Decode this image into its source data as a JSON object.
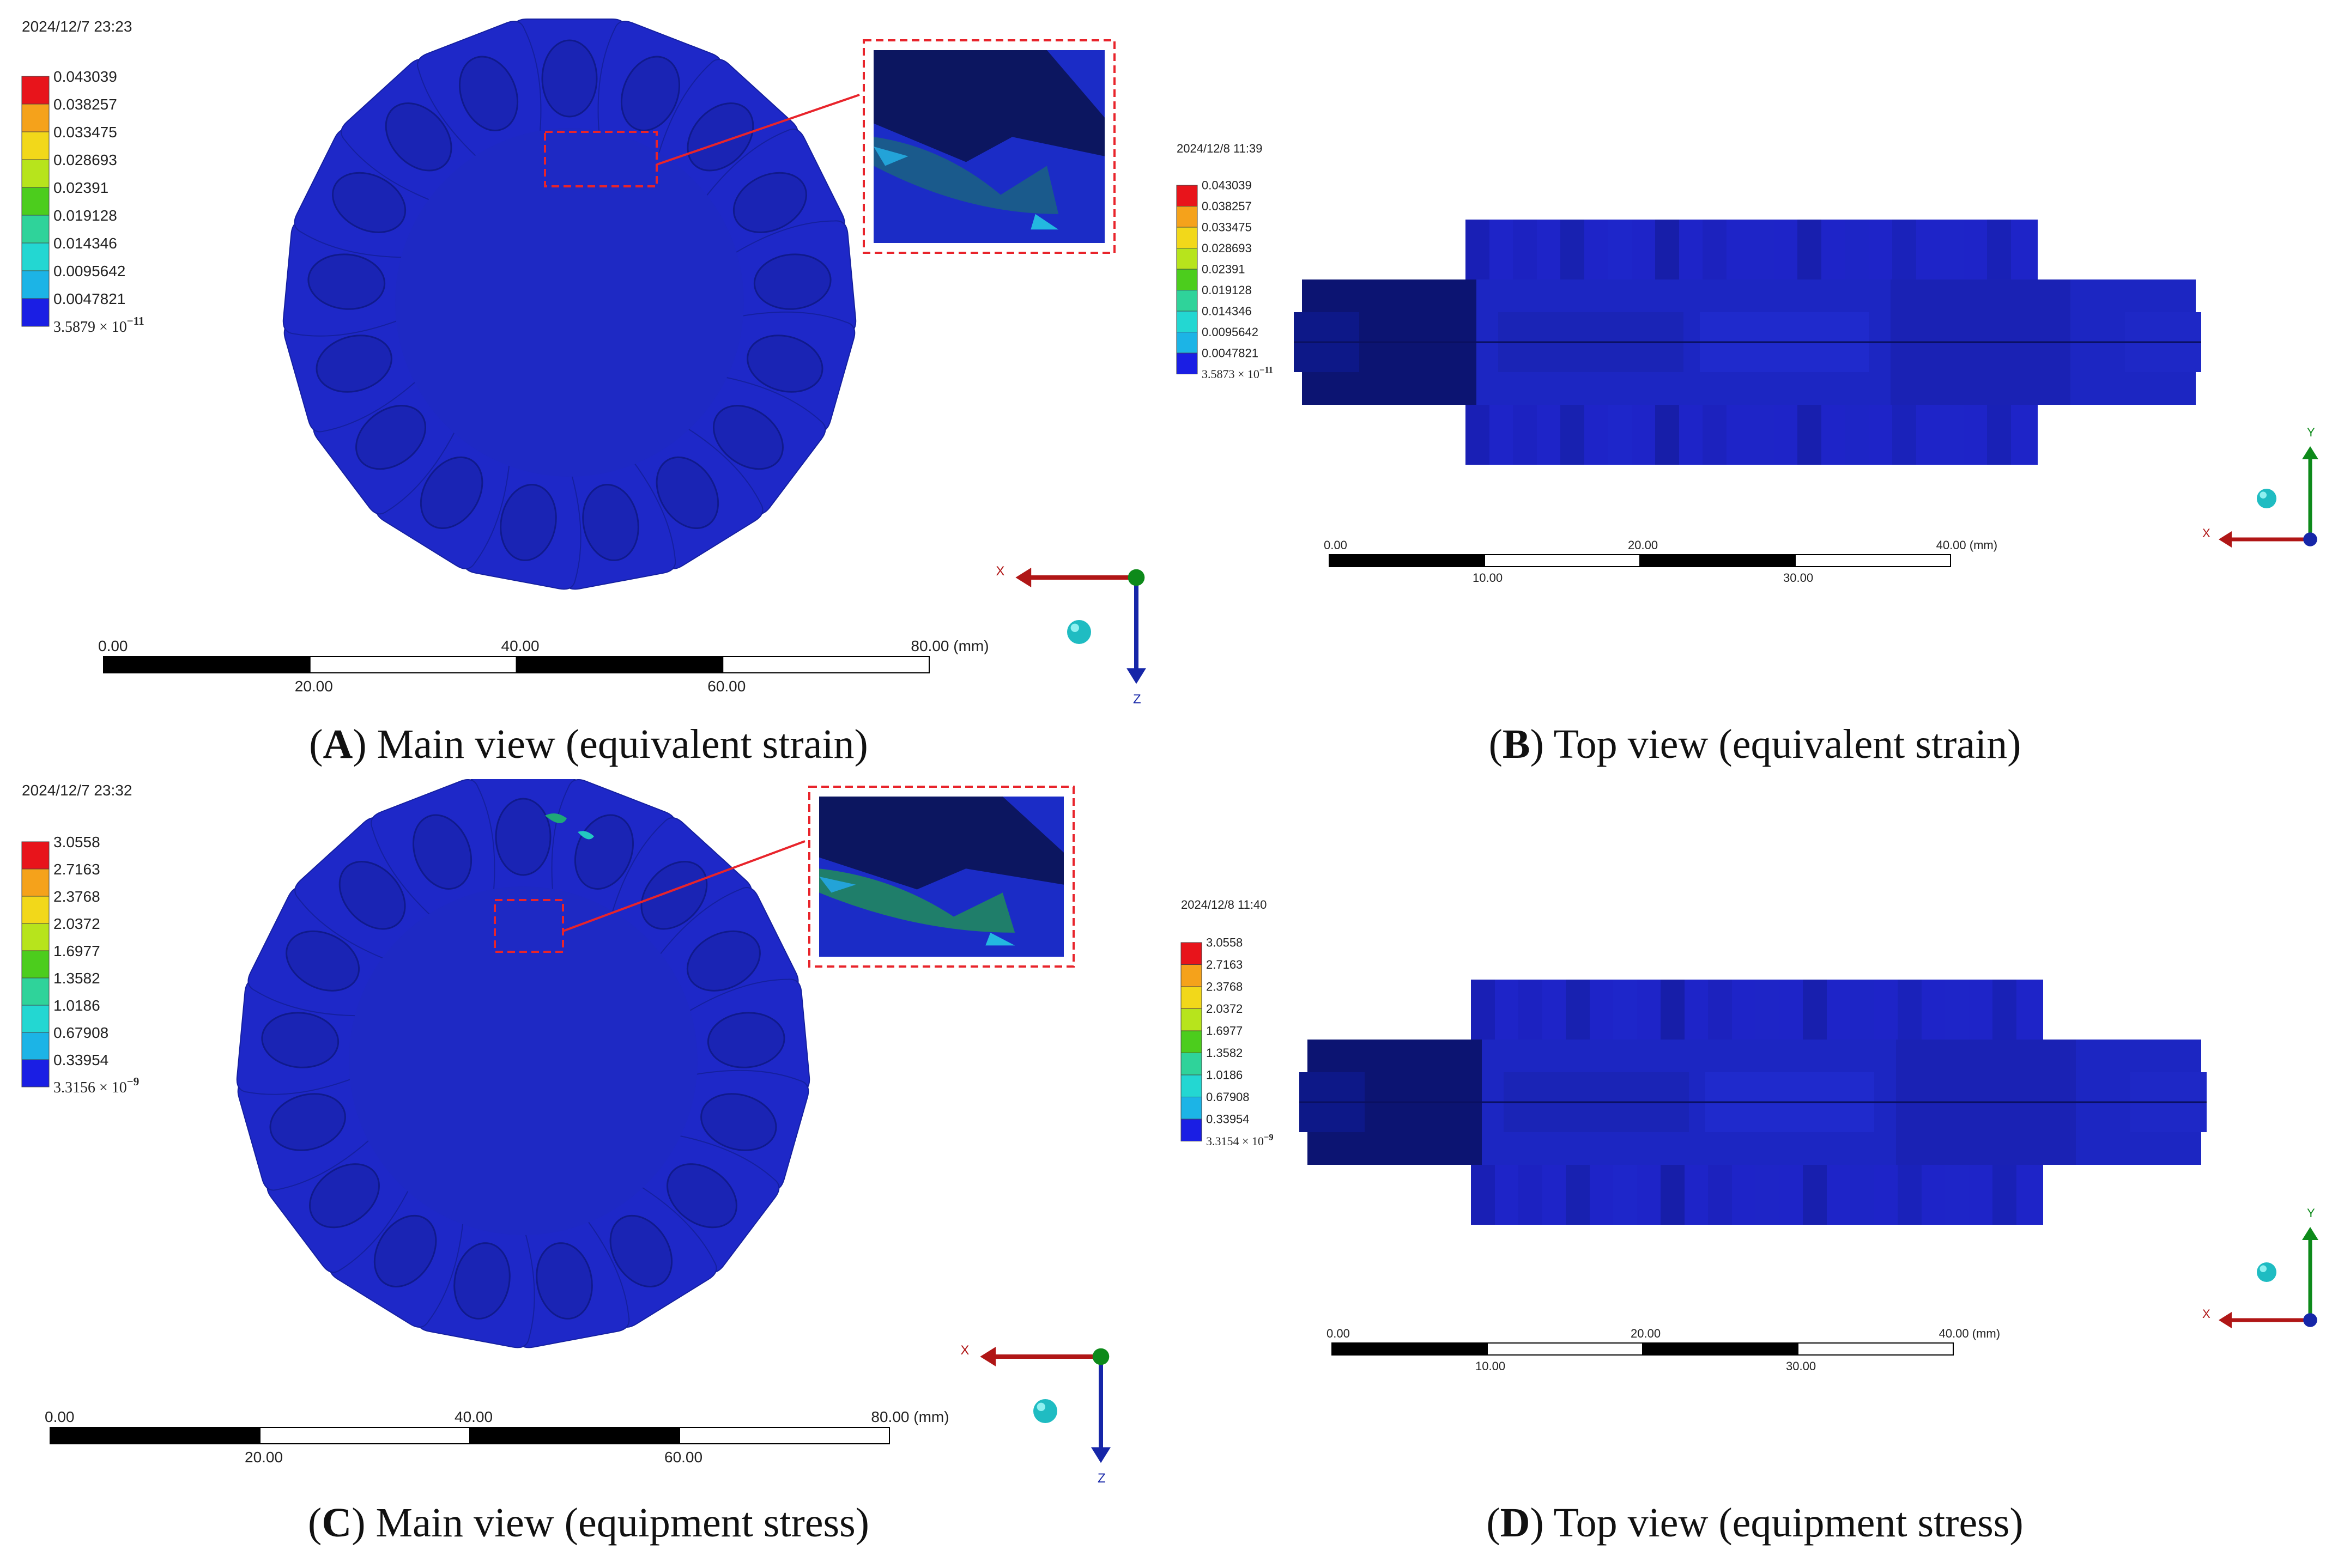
{
  "panels": [
    {
      "letter": "A",
      "caption": "Main view (equivalent strain)",
      "timestamp": "2024/12/7 23:23",
      "view": "main",
      "legend": {
        "values": [
          "0.043039",
          "0.038257",
          "0.033475",
          "0.028693",
          "0.02391",
          "0.019128",
          "0.014346",
          "0.0095642",
          "0.0047821"
        ],
        "min_mantissa": "3.5879",
        "min_exponent": "-11"
      },
      "scale": {
        "top": [
          "0.00",
          "40.00",
          "80.00 (mm)"
        ],
        "bottom": [
          "20.00",
          "60.00"
        ]
      },
      "axes": {
        "x": "X",
        "z": "Z"
      }
    },
    {
      "letter": "B",
      "caption": "Top view (equivalent strain)",
      "timestamp": "2024/12/8 11:39",
      "view": "top",
      "legend": {
        "values": [
          "0.043039",
          "0.038257",
          "0.033475",
          "0.028693",
          "0.02391",
          "0.019128",
          "0.014346",
          "0.0095642",
          "0.0047821"
        ],
        "min_mantissa": "3.5873",
        "min_exponent": "-11"
      },
      "scale": {
        "top": [
          "0.00",
          "20.00",
          "40.00 (mm)"
        ],
        "bottom": [
          "10.00",
          "30.00"
        ]
      },
      "axes": {
        "x": "X",
        "y": "Y"
      }
    },
    {
      "letter": "C",
      "caption": "Main view (equipment stress)",
      "timestamp": "2024/12/7 23:32",
      "view": "main",
      "legend": {
        "values": [
          "3.0558",
          "2.7163",
          "2.3768",
          "2.0372",
          "1.6977",
          "1.3582",
          "1.0186",
          "0.67908",
          "0.33954"
        ],
        "min_mantissa": "3.3156",
        "min_exponent": "-9"
      },
      "scale": {
        "top": [
          "0.00",
          "40.00",
          "80.00 (mm)"
        ],
        "bottom": [
          "20.00",
          "60.00"
        ]
      },
      "axes": {
        "x": "X",
        "z": "Z"
      }
    },
    {
      "letter": "D",
      "caption": "Top view (equipment stress)",
      "timestamp": "2024/12/8 11:40",
      "view": "top",
      "legend": {
        "values": [
          "3.0558",
          "2.7163",
          "2.3768",
          "2.0372",
          "1.6977",
          "1.3582",
          "1.0186",
          "0.67908",
          "0.33954"
        ],
        "min_mantissa": "3.3154",
        "min_exponent": "-9"
      },
      "scale": {
        "top": [
          "0.00",
          "20.00",
          "40.00 (mm)"
        ],
        "bottom": [
          "10.00",
          "30.00"
        ]
      },
      "axes": {
        "x": "X",
        "y": "Y"
      }
    }
  ],
  "colors": {
    "legend_scale": [
      "#e8141b",
      "#f5a21b",
      "#f2d81a",
      "#b7e41c",
      "#4ccd1d",
      "#2fd39a",
      "#23d7d2",
      "#1cb4e6",
      "#1a1ee4"
    ],
    "model_blue": "#1e28c8",
    "callout_red": "#e8242b",
    "axis_x": "#b01616",
    "axis_y": "#0d8a1a",
    "axis_z": "#1626a8"
  }
}
